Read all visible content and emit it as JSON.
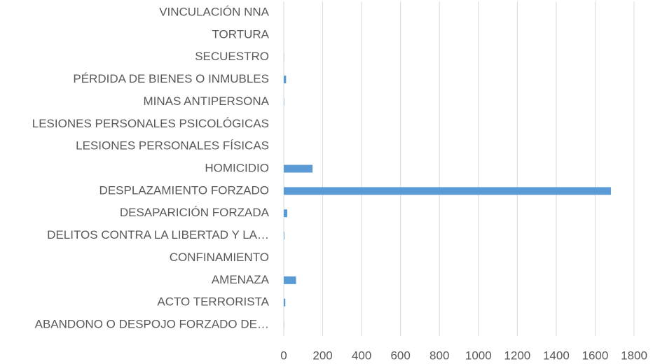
{
  "chart_data": {
    "type": "barh",
    "categories": [
      "VINCULACIÓN NNA",
      "TORTURA",
      "SECUESTRO",
      "PÉRDIDA DE BIENES O INMUBLES",
      "MINAS ANTIPERSONA",
      "LESIONES PERSONALES PSICOLÓGICAS",
      "LESIONES PERSONALES FÍSICAS",
      "HOMICIDIO",
      "DESPLAZAMIENTO FORZADO",
      "DESAPARICIÓN FORZADA",
      "DELITOS CONTRA LA LIBERTAD Y LA…",
      "CONFINAMIENTO",
      "AMENAZA",
      "ACTO TERRORISTA",
      "ABANDONO O DESPOJO FORZADO DE…"
    ],
    "values": [
      0,
      0,
      1,
      12,
      2,
      0,
      0,
      148,
      1681,
      18,
      3,
      0,
      63,
      8,
      1
    ],
    "color": "#5b9bd5",
    "xlim": [
      0,
      1800
    ],
    "xticks": [
      0,
      200,
      400,
      600,
      800,
      1000,
      1200,
      1400,
      1600,
      1800
    ],
    "grid": true
  }
}
